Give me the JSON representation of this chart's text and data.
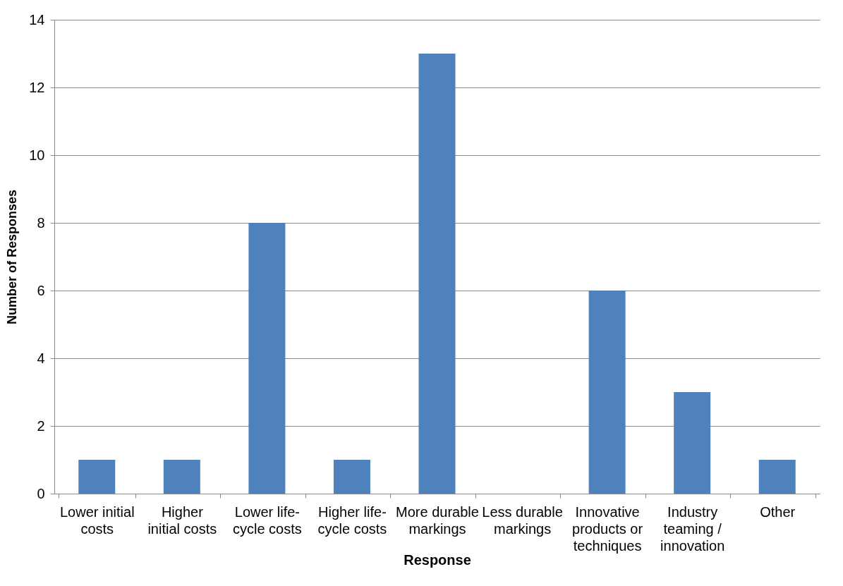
{
  "chart_data": {
    "type": "bar",
    "xlabel": "Response",
    "ylabel": "Number of Responses",
    "categories": [
      "Lower initial costs",
      "Higher initial costs",
      "Lower life-cycle costs",
      "Higher life-cycle costs",
      "More durable markings",
      "Less durable markings",
      "Innovative products or techniques",
      "Industry teaming / innovation",
      "Other"
    ],
    "values": [
      1,
      1,
      8,
      1,
      13,
      0,
      6,
      3,
      1
    ],
    "color": "#4f81bd",
    "ylim": [
      0,
      14
    ],
    "yticks": [
      0,
      2,
      4,
      6,
      8,
      10,
      12,
      14
    ],
    "grid": "y"
  }
}
